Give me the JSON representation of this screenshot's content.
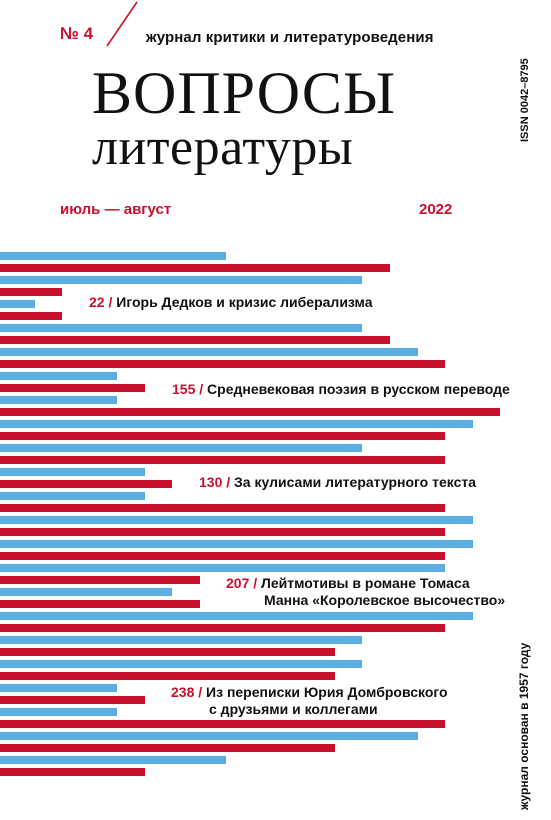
{
  "header": {
    "issue": "№ 4",
    "subtitle": "журнал критики и литературоведения",
    "title_line1": "ВОПРОСЫ",
    "title_line2": "литературы",
    "issn": "ISSN 0042–8795",
    "months": "июль — август",
    "year": "2022"
  },
  "contents": [
    {
      "page": "22",
      "lines": [
        "Игорь Дедков и кризис либерализма"
      ]
    },
    {
      "page": "155",
      "lines": [
        "Средневековая поэзия в русском переводе"
      ]
    },
    {
      "page": "130",
      "lines": [
        "За кулисами литературного текста"
      ]
    },
    {
      "page": "207",
      "lines": [
        "Лейтмотивы в романе Томаса",
        "Манна «Королевское высочество»"
      ]
    },
    {
      "page": "238",
      "lines": [
        "Из переписки Юрия Домбровского",
        "с друзьями и коллегами"
      ]
    }
  ],
  "side": {
    "founded": "журнал основан в 1957 году"
  },
  "colors": {
    "red": "#c8102e",
    "blue": "#5aaee0",
    "text": "#111111"
  }
}
